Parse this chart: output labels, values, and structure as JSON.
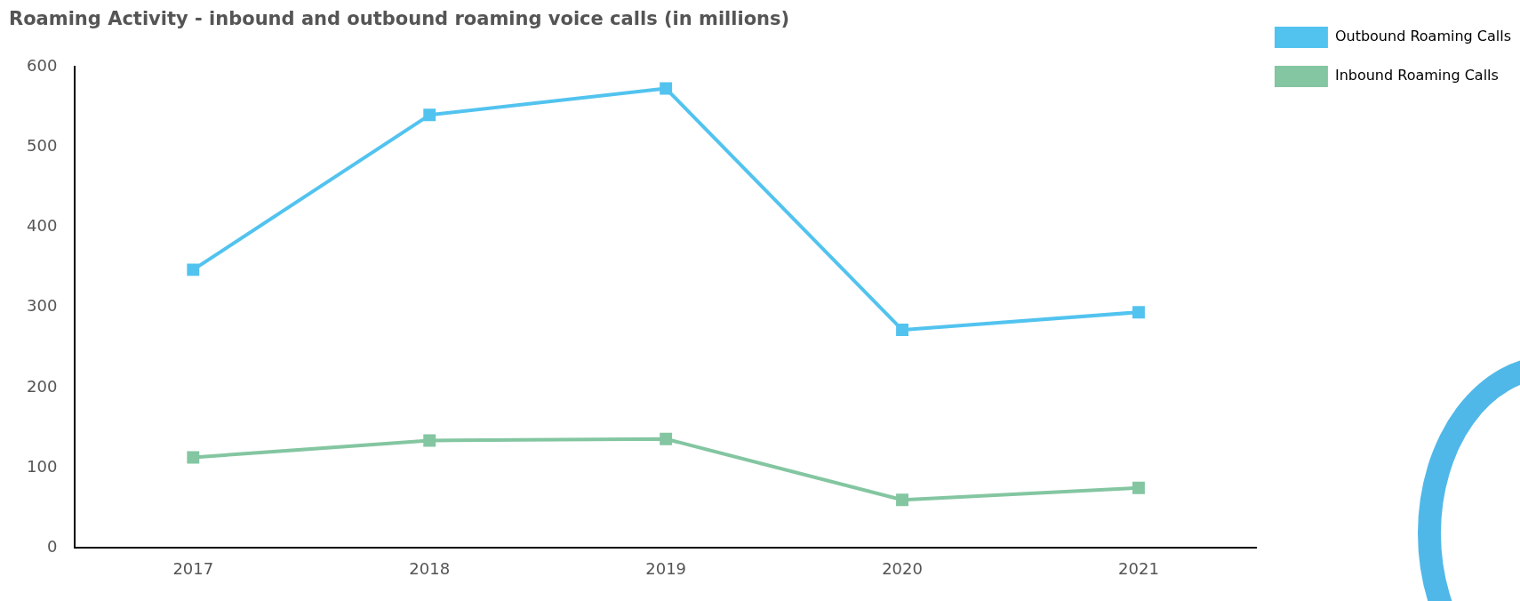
{
  "chart_data": {
    "type": "line",
    "title": "Roaming Activity - inbound and outbound roaming voice calls (in millions)",
    "categories": [
      "2017",
      "2018",
      "2019",
      "2020",
      "2021"
    ],
    "series": [
      {
        "name": "Outbound Roaming Calls",
        "color": "#52c3ef",
        "values": [
          347,
          540,
          573,
          272,
          294
        ]
      },
      {
        "name": "Inbound Roaming Calls",
        "color": "#83c6a1",
        "values": [
          113,
          134,
          136,
          60,
          75
        ]
      }
    ],
    "ylim": [
      0,
      600
    ],
    "yticks": [
      0,
      100,
      200,
      300,
      400,
      500,
      600
    ],
    "grid": false,
    "legend": "top right",
    "marker": "square",
    "line_style": "solid"
  }
}
